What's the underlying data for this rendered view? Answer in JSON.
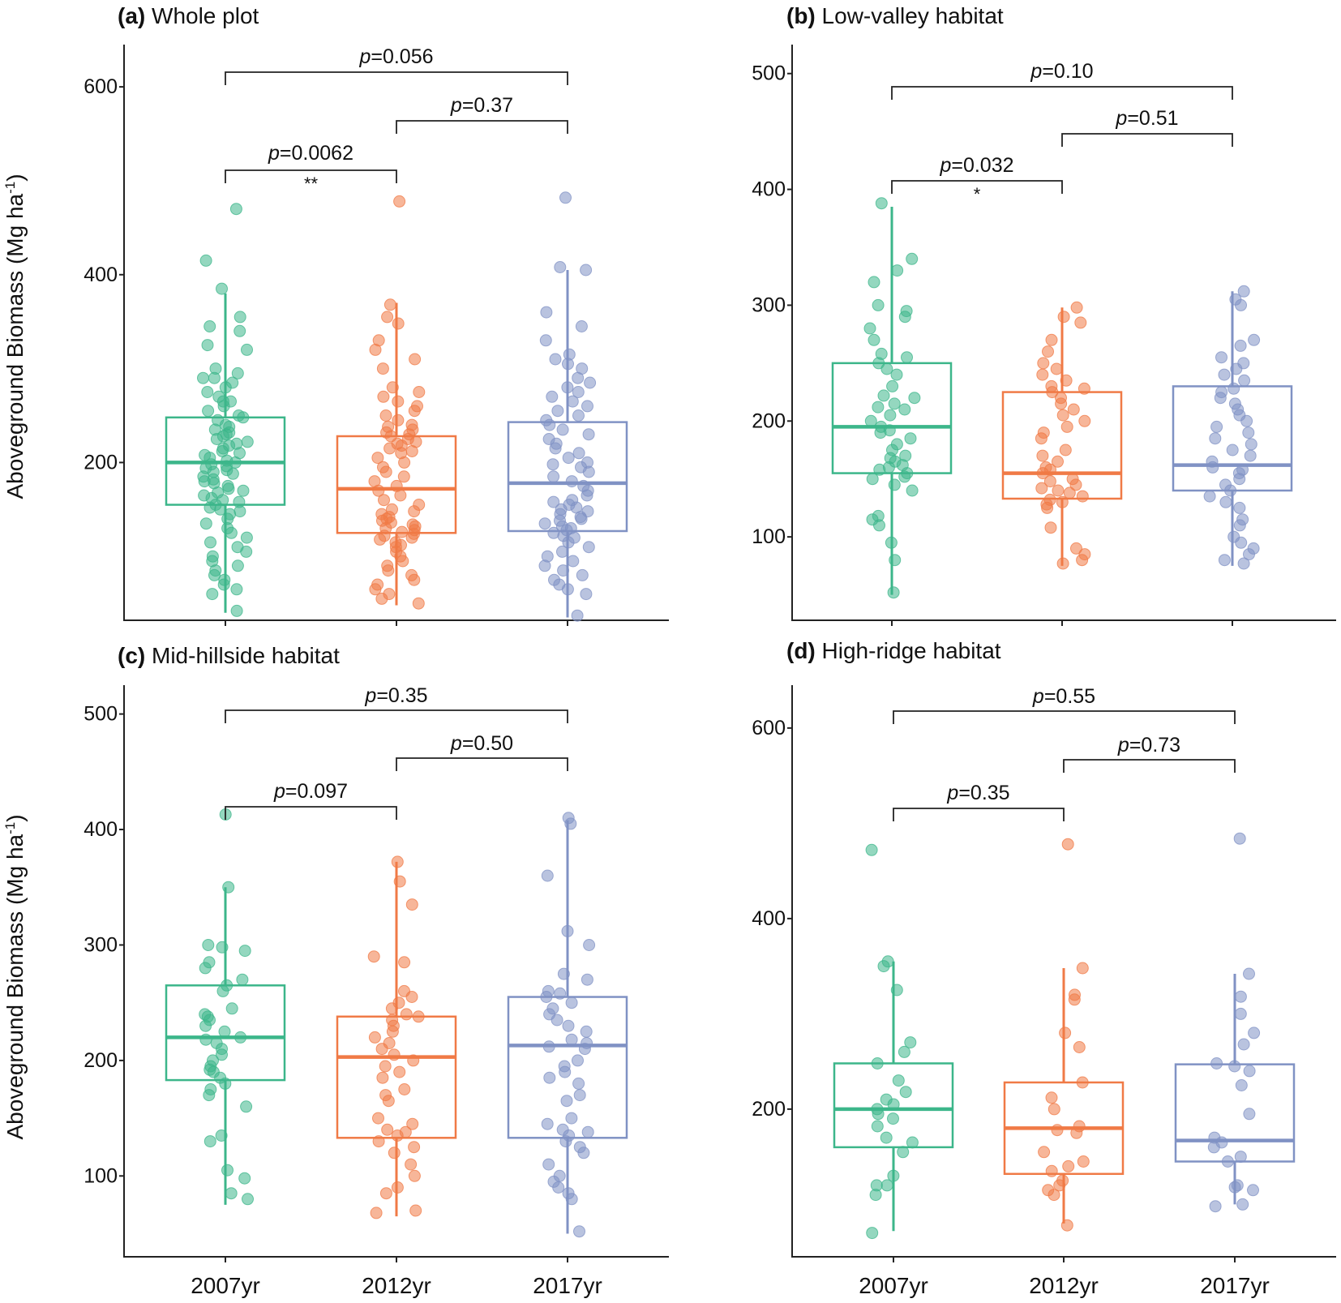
{
  "figure": {
    "y_axis_label": "Aboveground Biomass (Mg ha",
    "y_axis_label_sup": "-1",
    "y_axis_label_end": ")",
    "colors": {
      "2007yr": "#3cb68a",
      "2012yr": "#f07a46",
      "2017yr": "#8092c4"
    }
  },
  "chart_data": [
    {
      "type": "box",
      "panel_letter": "(a)",
      "title": "Whole plot",
      "categories": [
        "2007yr",
        "2012yr",
        "2017yr"
      ],
      "ylim": [
        32,
        645
      ],
      "yticks": [
        200,
        400,
        600
      ],
      "boxes": [
        {
          "whisker_low": 40,
          "q1": 155,
          "median": 200,
          "q3": 248,
          "whisker_high": 380
        },
        {
          "whisker_low": 48,
          "q1": 125,
          "median": 172,
          "q3": 228,
          "whisker_high": 370
        },
        {
          "whisker_low": 35,
          "q1": 127,
          "median": 178,
          "q3": 243,
          "whisker_high": 405
        }
      ],
      "comparisons": [
        {
          "p_prefix": "p",
          "p_text": "=0.0062",
          "groups": [
            0,
            1
          ],
          "level": 0,
          "signif": "**"
        },
        {
          "p_prefix": "p",
          "p_text": "=0.37",
          "groups": [
            1,
            2
          ],
          "level": 1,
          "signif": ""
        },
        {
          "p_prefix": "p",
          "p_text": "=0.056",
          "groups": [
            0,
            2
          ],
          "level": 2,
          "signif": ""
        }
      ],
      "points": [
        [
          470,
          415,
          385,
          355,
          345,
          340,
          325,
          320,
          300,
          295,
          290,
          290,
          285,
          280,
          275,
          270,
          265,
          265,
          260,
          255,
          250,
          248,
          245,
          240,
          238,
          235,
          232,
          230,
          228,
          225,
          222,
          220,
          218,
          215,
          212,
          210,
          208,
          205,
          202,
          200,
          198,
          196,
          194,
          192,
          190,
          188,
          185,
          182,
          180,
          178,
          175,
          172,
          170,
          168,
          165,
          162,
          160,
          158,
          155,
          152,
          150,
          148,
          145,
          140,
          135,
          130,
          125,
          120,
          115,
          110,
          105,
          100,
          95,
          90,
          85,
          80,
          75,
          70,
          65,
          60,
          42
        ],
        [
          478,
          368,
          355,
          348,
          330,
          320,
          310,
          300,
          280,
          275,
          270,
          265,
          260,
          255,
          250,
          245,
          240,
          238,
          235,
          232,
          230,
          228,
          225,
          222,
          220,
          218,
          215,
          212,
          210,
          205,
          200,
          195,
          190,
          185,
          180,
          175,
          170,
          165,
          160,
          155,
          150,
          148,
          145,
          142,
          140,
          138,
          136,
          134,
          132,
          130,
          128,
          126,
          124,
          122,
          120,
          118,
          115,
          112,
          110,
          105,
          100,
          95,
          90,
          85,
          80,
          75,
          70,
          65,
          60,
          55,
          50
        ],
        [
          482,
          408,
          405,
          360,
          345,
          330,
          315,
          310,
          305,
          300,
          290,
          285,
          280,
          275,
          270,
          265,
          260,
          255,
          250,
          245,
          240,
          235,
          230,
          225,
          220,
          215,
          210,
          205,
          200,
          198,
          195,
          190,
          185,
          180,
          175,
          170,
          165,
          160,
          158,
          155,
          152,
          150,
          148,
          145,
          142,
          140,
          138,
          135,
          132,
          130,
          128,
          125,
          122,
          120,
          115,
          110,
          105,
          100,
          95,
          90,
          85,
          80,
          75,
          70,
          65,
          60,
          37
        ]
      ]
    },
    {
      "type": "box",
      "panel_letter": "(b)",
      "title": "Low-valley habitat",
      "categories": [
        "2007yr",
        "2012yr",
        "2017yr"
      ],
      "ylim": [
        28,
        525
      ],
      "yticks": [
        100,
        200,
        300,
        400,
        500
      ],
      "boxes": [
        {
          "whisker_low": 50,
          "q1": 155,
          "median": 195,
          "q3": 250,
          "whisker_high": 385
        },
        {
          "whisker_low": 75,
          "q1": 133,
          "median": 155,
          "q3": 225,
          "whisker_high": 298
        },
        {
          "whisker_low": 75,
          "q1": 140,
          "median": 162,
          "q3": 230,
          "whisker_high": 312
        }
      ],
      "comparisons": [
        {
          "p_prefix": "p",
          "p_text": "=0.032",
          "groups": [
            0,
            1
          ],
          "level": 0,
          "signif": "*"
        },
        {
          "p_prefix": "p",
          "p_text": "=0.51",
          "groups": [
            1,
            2
          ],
          "level": 1,
          "signif": ""
        },
        {
          "p_prefix": "p",
          "p_text": "=0.10",
          "groups": [
            0,
            2
          ],
          "level": 2,
          "signif": ""
        }
      ],
      "points": [
        [
          388,
          340,
          330,
          320,
          300,
          295,
          290,
          280,
          270,
          258,
          255,
          250,
          245,
          240,
          230,
          222,
          220,
          215,
          212,
          210,
          205,
          200,
          195,
          192,
          190,
          185,
          180,
          175,
          170,
          168,
          165,
          162,
          160,
          158,
          155,
          152,
          150,
          145,
          140,
          118,
          115,
          110,
          95,
          80,
          52
        ],
        [
          298,
          290,
          285,
          270,
          260,
          250,
          245,
          240,
          235,
          230,
          228,
          225,
          220,
          215,
          210,
          205,
          200,
          195,
          190,
          185,
          175,
          170,
          165,
          160,
          158,
          155,
          150,
          148,
          145,
          142,
          140,
          138,
          135,
          132,
          130,
          128,
          125,
          108,
          90,
          85,
          80,
          77
        ],
        [
          312,
          305,
          300,
          270,
          265,
          255,
          250,
          245,
          240,
          235,
          228,
          225,
          220,
          215,
          210,
          205,
          200,
          195,
          190,
          185,
          180,
          175,
          170,
          165,
          160,
          158,
          155,
          150,
          145,
          140,
          135,
          130,
          125,
          115,
          110,
          100,
          95,
          90,
          85,
          80,
          77
        ]
      ]
    },
    {
      "type": "box",
      "panel_letter": "(c)",
      "title": "Mid-hillside habitat",
      "categories": [
        "2007yr",
        "2012yr",
        "2017yr"
      ],
      "ylim": [
        30,
        525
      ],
      "yticks": [
        100,
        200,
        300,
        400,
        500
      ],
      "boxes": [
        {
          "whisker_low": 75,
          "q1": 183,
          "median": 220,
          "q3": 265,
          "whisker_high": 350
        },
        {
          "whisker_low": 65,
          "q1": 133,
          "median": 203,
          "q3": 238,
          "whisker_high": 372
        },
        {
          "whisker_low": 50,
          "q1": 133,
          "median": 213,
          "q3": 255,
          "whisker_high": 408
        }
      ],
      "comparisons": [
        {
          "p_prefix": "p",
          "p_text": "=0.097",
          "groups": [
            0,
            1
          ],
          "level": 0,
          "signif": ""
        },
        {
          "p_prefix": "p",
          "p_text": "=0.50",
          "groups": [
            1,
            2
          ],
          "level": 1,
          "signif": ""
        },
        {
          "p_prefix": "p",
          "p_text": "=0.35",
          "groups": [
            0,
            2
          ],
          "level": 2,
          "signif": ""
        }
      ],
      "points": [
        [
          413,
          350,
          300,
          298,
          295,
          285,
          280,
          270,
          265,
          260,
          245,
          240,
          238,
          235,
          230,
          225,
          220,
          218,
          215,
          210,
          205,
          200,
          195,
          192,
          190,
          185,
          180,
          175,
          170,
          160,
          135,
          130,
          105,
          98,
          85,
          80
        ],
        [
          372,
          355,
          335,
          290,
          285,
          260,
          255,
          250,
          245,
          240,
          238,
          235,
          230,
          225,
          220,
          215,
          210,
          205,
          200,
          195,
          190,
          185,
          175,
          170,
          165,
          150,
          145,
          140,
          138,
          135,
          130,
          125,
          120,
          110,
          100,
          90,
          85,
          70,
          68
        ],
        [
          410,
          405,
          360,
          312,
          300,
          275,
          270,
          260,
          258,
          255,
          250,
          245,
          240,
          235,
          230,
          225,
          218,
          215,
          212,
          210,
          200,
          195,
          190,
          185,
          180,
          170,
          165,
          150,
          145,
          140,
          138,
          135,
          130,
          125,
          120,
          110,
          100,
          95,
          90,
          85,
          80,
          52
        ]
      ]
    },
    {
      "type": "box",
      "panel_letter": "(d)",
      "title": "High-ridge habitat",
      "categories": [
        "2007yr",
        "2012yr",
        "2017yr"
      ],
      "ylim": [
        45,
        645
      ],
      "yticks": [
        200,
        400,
        600
      ],
      "boxes": [
        {
          "whisker_low": 72,
          "q1": 160,
          "median": 200,
          "q3": 248,
          "whisker_high": 355
        },
        {
          "whisker_low": 80,
          "q1": 132,
          "median": 180,
          "q3": 228,
          "whisker_high": 348
        },
        {
          "whisker_low": 100,
          "q1": 145,
          "median": 167,
          "q3": 247,
          "whisker_high": 342
        }
      ],
      "comparisons": [
        {
          "p_prefix": "p",
          "p_text": "=0.35",
          "groups": [
            0,
            1
          ],
          "level": 0,
          "signif": ""
        },
        {
          "p_prefix": "p",
          "p_text": "=0.73",
          "groups": [
            1,
            2
          ],
          "level": 1,
          "signif": ""
        },
        {
          "p_prefix": "p",
          "p_text": "=0.55",
          "groups": [
            0,
            2
          ],
          "level": 2,
          "signif": ""
        }
      ],
      "points": [
        [
          472,
          355,
          350,
          325,
          270,
          260,
          248,
          230,
          218,
          210,
          205,
          200,
          195,
          190,
          182,
          170,
          165,
          155,
          130,
          120,
          120,
          110,
          70
        ],
        [
          478,
          348,
          320,
          315,
          280,
          265,
          228,
          212,
          200,
          182,
          178,
          175,
          155,
          145,
          140,
          135,
          125,
          120,
          115,
          110,
          78
        ],
        [
          484,
          342,
          318,
          300,
          280,
          268,
          248,
          245,
          240,
          225,
          195,
          170,
          165,
          160,
          150,
          145,
          120,
          118,
          115,
          100,
          98
        ]
      ]
    }
  ]
}
